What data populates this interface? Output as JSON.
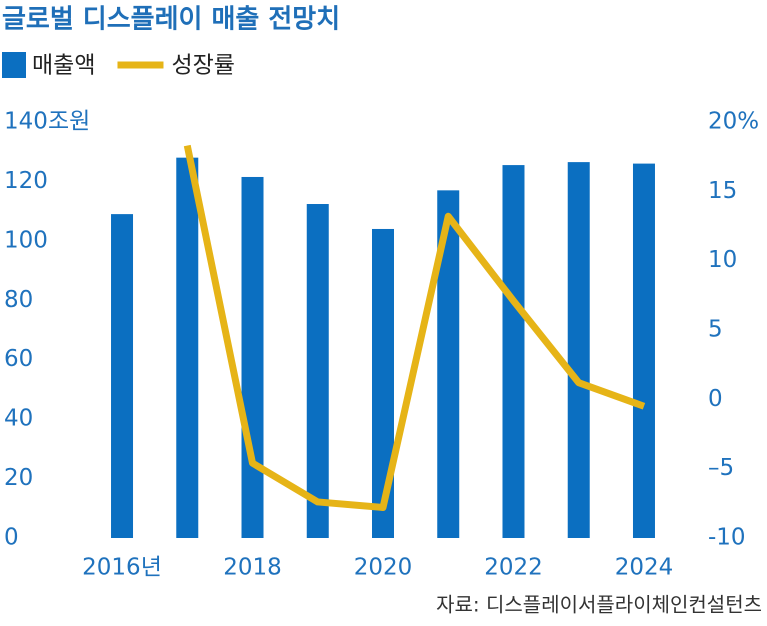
{
  "chart_data": {
    "type": "bar_line",
    "title": "글로벌 디스플레이 매출 전망치",
    "ylabel": "조원",
    "source": "자료: 디스플레이서플라이체인컨설턴츠",
    "categories": [
      "2016년",
      null,
      "2018",
      null,
      "2020",
      null,
      "2022",
      null,
      "2024"
    ],
    "series": [
      {
        "name": "매출액",
        "type": "bar",
        "color": "#0b6fc1",
        "values": [
          109,
          128,
          121.5,
          112.4,
          104,
          117,
          125.5,
          126.5,
          126
        ]
      },
      {
        "name": "성장률",
        "type": "line",
        "axis": "y2",
        "color": "#e6b417",
        "values": [
          null,
          18.3,
          -4.6,
          -7.4,
          -7.8,
          13.2,
          7.1,
          1.2,
          -0.5
        ]
      }
    ],
    "ylim": [
      0,
      140
    ],
    "yticks": [
      0,
      20,
      40,
      60,
      80,
      100,
      120,
      140
    ],
    "y2lim": [
      -10,
      20
    ],
    "y2ticks": [
      {
        "value": -10,
        "label": "-10"
      },
      {
        "value": -5,
        "label": "–5"
      },
      0,
      5,
      10,
      15,
      {
        "value": 20,
        "label": "20%"
      }
    ],
    "grid": false
  }
}
